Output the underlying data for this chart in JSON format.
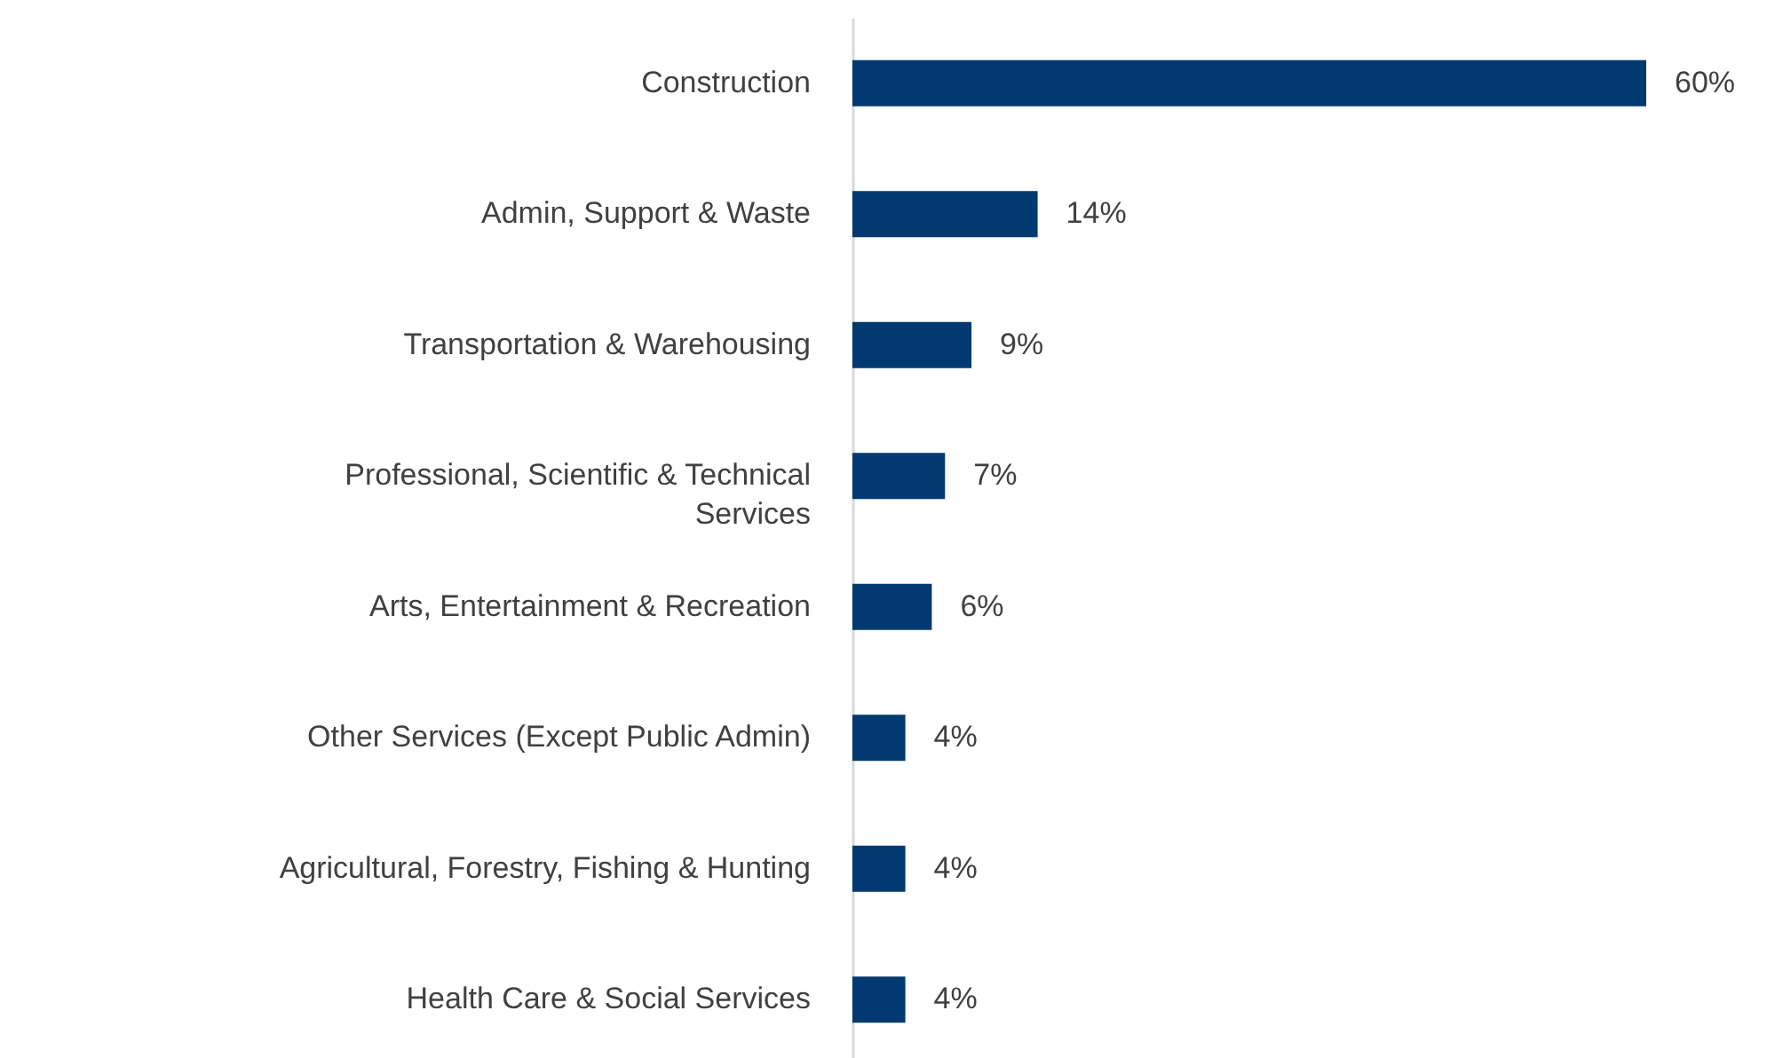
{
  "chart_data": {
    "type": "bar",
    "orientation": "horizontal",
    "categories": [
      "Construction",
      "Admin, Support & Waste",
      "Transportation & Warehousing",
      "Professional, Scientific & Technical Services",
      "Arts, Entertainment & Recreation",
      "Other Services (Except Public Admin)",
      "Agricultural, Forestry, Fishing & Hunting",
      "Health Care & Social Services"
    ],
    "values": [
      60,
      14,
      9,
      7,
      6,
      4,
      4,
      4
    ],
    "value_labels": [
      "60%",
      "14%",
      "9%",
      "7%",
      "6%",
      "4%",
      "4%",
      "4%"
    ],
    "color": "#003a70",
    "grid": false
  }
}
